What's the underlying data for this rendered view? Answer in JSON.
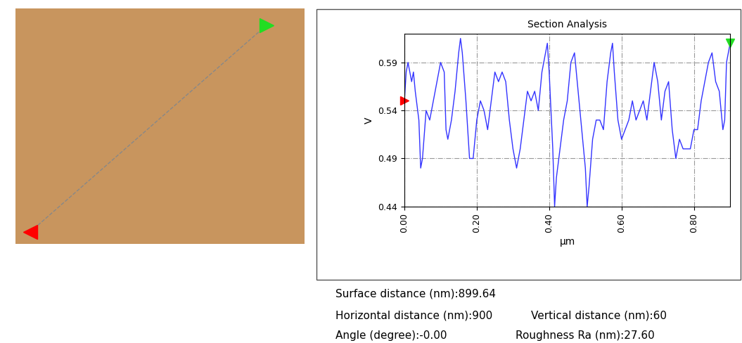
{
  "chart_data": {
    "type": "line",
    "title": "Section Analysis",
    "x_label": "µm",
    "y_label": "V",
    "x": [
      0.0,
      0.005,
      0.01,
      0.02,
      0.025,
      0.03,
      0.04,
      0.045,
      0.05,
      0.06,
      0.07,
      0.08,
      0.09,
      0.1,
      0.11,
      0.115,
      0.12,
      0.13,
      0.14,
      0.15,
      0.155,
      0.16,
      0.17,
      0.18,
      0.19,
      0.2,
      0.21,
      0.22,
      0.23,
      0.24,
      0.25,
      0.26,
      0.27,
      0.28,
      0.29,
      0.3,
      0.31,
      0.32,
      0.33,
      0.34,
      0.35,
      0.36,
      0.37,
      0.38,
      0.39,
      0.395,
      0.4,
      0.41,
      0.415,
      0.42,
      0.43,
      0.44,
      0.45,
      0.46,
      0.47,
      0.48,
      0.49,
      0.5,
      0.505,
      0.51,
      0.52,
      0.53,
      0.54,
      0.55,
      0.56,
      0.57,
      0.575,
      0.58,
      0.59,
      0.6,
      0.61,
      0.62,
      0.63,
      0.64,
      0.65,
      0.66,
      0.67,
      0.68,
      0.69,
      0.7,
      0.71,
      0.72,
      0.73,
      0.74,
      0.75,
      0.76,
      0.77,
      0.78,
      0.79,
      0.8,
      0.81,
      0.82,
      0.83,
      0.84,
      0.85,
      0.86,
      0.87,
      0.88,
      0.885,
      0.89,
      0.9
    ],
    "values": [
      0.55,
      0.58,
      0.59,
      0.57,
      0.58,
      0.56,
      0.53,
      0.48,
      0.49,
      0.54,
      0.53,
      0.55,
      0.57,
      0.59,
      0.58,
      0.52,
      0.51,
      0.53,
      0.56,
      0.6,
      0.615,
      0.6,
      0.55,
      0.49,
      0.49,
      0.53,
      0.55,
      0.54,
      0.52,
      0.55,
      0.58,
      0.57,
      0.58,
      0.57,
      0.53,
      0.5,
      0.48,
      0.5,
      0.53,
      0.56,
      0.55,
      0.56,
      0.54,
      0.58,
      0.6,
      0.61,
      0.58,
      0.5,
      0.44,
      0.47,
      0.5,
      0.53,
      0.55,
      0.59,
      0.6,
      0.56,
      0.52,
      0.48,
      0.44,
      0.46,
      0.51,
      0.53,
      0.53,
      0.52,
      0.57,
      0.6,
      0.61,
      0.58,
      0.53,
      0.51,
      0.52,
      0.53,
      0.55,
      0.53,
      0.54,
      0.55,
      0.53,
      0.56,
      0.59,
      0.57,
      0.53,
      0.56,
      0.57,
      0.52,
      0.49,
      0.51,
      0.5,
      0.5,
      0.5,
      0.52,
      0.52,
      0.55,
      0.57,
      0.59,
      0.6,
      0.57,
      0.56,
      0.52,
      0.53,
      0.59,
      0.61
    ],
    "color": "#3333ff",
    "xlim": [
      0.0,
      0.9
    ],
    "xticks": [
      {
        "value": 0.0,
        "label": "0.00"
      },
      {
        "value": 0.2,
        "label": "0.20"
      },
      {
        "value": 0.4,
        "label": "0.40"
      },
      {
        "value": 0.6,
        "label": "0.60"
      },
      {
        "value": 0.8,
        "label": "0.80"
      }
    ],
    "ylim": [
      0.44,
      0.62
    ],
    "yticks": [
      0.44,
      0.49,
      0.54,
      0.59
    ],
    "grid": true,
    "annotations": [
      "Surface distance (nm):899.64",
      "Horizontal distance (nm):900",
      "Vertical distance (nm):60",
      "Angle (degree):-0.00",
      "Roughness Ra (nm):27.60"
    ]
  }
}
